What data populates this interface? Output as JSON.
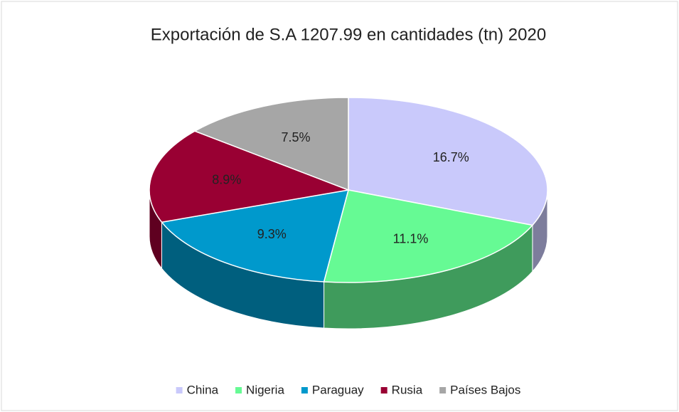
{
  "chart_data": {
    "type": "pie3d",
    "title": "Exportación de S.A 1207.99 en cantidades (tn) 2020",
    "categories": [
      "China",
      "Nigeria",
      "Paraguay",
      "Rusia",
      "Países Bajos"
    ],
    "values": [
      16.7,
      11.1,
      9.3,
      8.9,
      7.5
    ],
    "value_labels": [
      "16.7%",
      "11.1%",
      "9.3%",
      "8.9%",
      "7.5%"
    ],
    "colors": [
      "#c9c9fb",
      "#66fa94",
      "#0099cc",
      "#990033",
      "#a6a6a6"
    ],
    "legend": "bottom"
  }
}
